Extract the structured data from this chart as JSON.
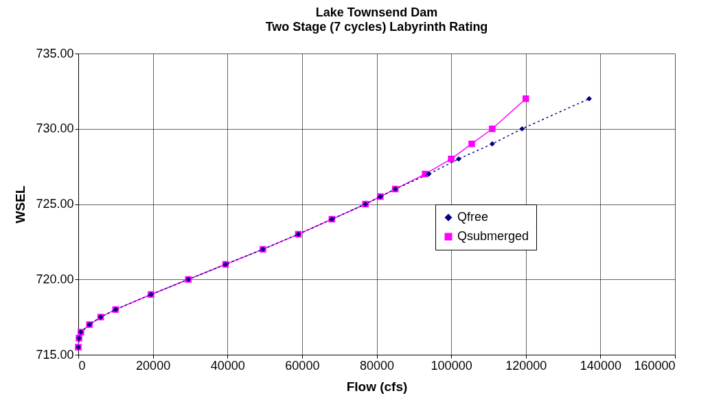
{
  "chart_data": {
    "type": "line",
    "title": "Lake Townsend Dam",
    "subtitle": "Two Stage (7 cycles) Labyrinth Rating",
    "xlabel": "Flow (cfs)",
    "ylabel": "WSEL",
    "xlim": [
      0,
      160000
    ],
    "xticks": [
      0,
      20000,
      40000,
      60000,
      80000,
      100000,
      120000,
      140000,
      160000
    ],
    "ylim": [
      715,
      735
    ],
    "yticks": [
      {
        "value": 715,
        "label": "715.00"
      },
      {
        "value": 720,
        "label": "720.00"
      },
      {
        "value": 725,
        "label": "725.00"
      },
      {
        "value": 730,
        "label": "730.00"
      },
      {
        "value": 735,
        "label": "735.00"
      }
    ],
    "grid": true,
    "legend": "right",
    "series": [
      {
        "name": "Qfree",
        "color": "#000080",
        "marker": "diamond",
        "line_style": "dotted",
        "x": [
          0,
          200,
          700,
          3000,
          6000,
          10000,
          19500,
          29500,
          39500,
          49500,
          59000,
          68000,
          77000,
          81000,
          85000,
          94000,
          102000,
          111000,
          119000,
          137000
        ],
        "values": [
          715.5,
          716.1,
          716.5,
          717,
          717.5,
          718,
          719,
          720,
          721,
          722,
          723,
          724,
          725,
          725.5,
          726,
          727,
          728,
          729,
          730,
          732
        ]
      },
      {
        "name": "Qsubmerged",
        "color": "#ff00ff",
        "marker": "square",
        "line_style": "solid",
        "x": [
          0,
          200,
          700,
          3000,
          6000,
          10000,
          19500,
          29500,
          39500,
          49500,
          59000,
          68000,
          77000,
          81000,
          85000,
          93000,
          100000,
          105500,
          111000,
          120000
        ],
        "values": [
          715.5,
          716.1,
          716.5,
          717,
          717.5,
          718,
          719,
          720,
          721,
          722,
          723,
          724,
          725,
          725.5,
          726,
          727,
          728,
          729,
          730,
          732
        ]
      }
    ]
  }
}
